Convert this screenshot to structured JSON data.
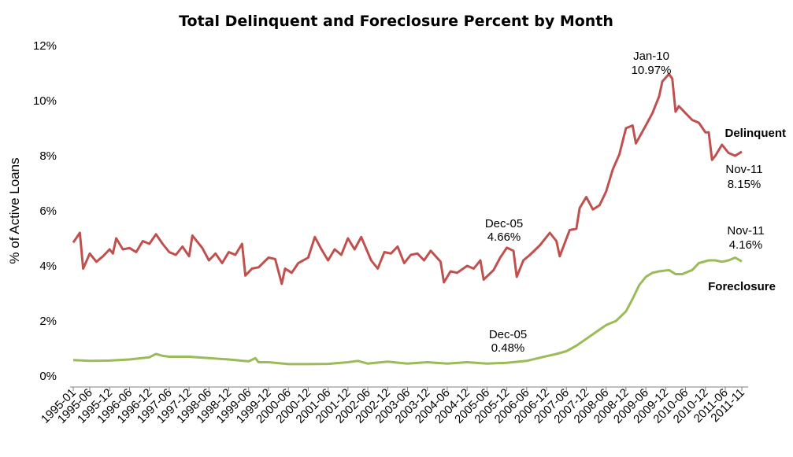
{
  "colors": {
    "delinquent": "#C0504D",
    "foreclosure": "#9BBB59",
    "axis": "#808080"
  },
  "chart_data": {
    "type": "line",
    "title": "Total Delinquent and Foreclosure Percent by Month",
    "ylabel": "% of Active Loans",
    "xlabel": "",
    "ylim": [
      0,
      12
    ],
    "yticks": [
      0,
      2,
      4,
      6,
      8,
      10,
      12
    ],
    "ytick_labels": [
      "0%",
      "2%",
      "4%",
      "6%",
      "8%",
      "10%",
      "12%"
    ],
    "xtick_labels": [
      "1995-01",
      "1995-06",
      "1995-12",
      "1996-06",
      "1996-12",
      "1997-06",
      "1997-12",
      "1998-06",
      "1998-12",
      "1999-06",
      "1999-12",
      "2000-06",
      "2000-12",
      "2001-06",
      "2001-12",
      "2002-06",
      "2002-12",
      "2003-06",
      "2003-12",
      "2004-06",
      "2004-12",
      "2005-06",
      "2005-12",
      "2006-06",
      "2006-12",
      "2007-06",
      "2007-12",
      "2008-06",
      "2008-12",
      "2009-06",
      "2009-12",
      "2010-06",
      "2010-12",
      "2011-06",
      "2011-11"
    ],
    "x_start": "1995-01",
    "x_end": "2011-11",
    "grid": false,
    "series": [
      {
        "name": "Delinquent",
        "color": "#C0504D",
        "points": [
          [
            "1995-01",
            4.85
          ],
          [
            "1995-03",
            5.2
          ],
          [
            "1995-04",
            3.9
          ],
          [
            "1995-06",
            4.45
          ],
          [
            "1995-08",
            4.15
          ],
          [
            "1995-10",
            4.35
          ],
          [
            "1995-12",
            4.6
          ],
          [
            "1996-01",
            4.45
          ],
          [
            "1996-02",
            5.0
          ],
          [
            "1996-04",
            4.6
          ],
          [
            "1996-06",
            4.65
          ],
          [
            "1996-08",
            4.5
          ],
          [
            "1996-10",
            4.9
          ],
          [
            "1996-12",
            4.8
          ],
          [
            "1997-02",
            5.15
          ],
          [
            "1997-04",
            4.8
          ],
          [
            "1997-06",
            4.5
          ],
          [
            "1997-08",
            4.4
          ],
          [
            "1997-10",
            4.7
          ],
          [
            "1997-12",
            4.35
          ],
          [
            "1998-01",
            5.1
          ],
          [
            "1998-04",
            4.65
          ],
          [
            "1998-06",
            4.2
          ],
          [
            "1998-08",
            4.45
          ],
          [
            "1998-10",
            4.1
          ],
          [
            "1998-12",
            4.5
          ],
          [
            "1999-02",
            4.4
          ],
          [
            "1999-04",
            4.8
          ],
          [
            "1999-05",
            3.65
          ],
          [
            "1999-07",
            3.9
          ],
          [
            "1999-09",
            3.95
          ],
          [
            "1999-12",
            4.3
          ],
          [
            "2000-02",
            4.25
          ],
          [
            "2000-04",
            3.35
          ],
          [
            "2000-05",
            3.9
          ],
          [
            "2000-07",
            3.75
          ],
          [
            "2000-09",
            4.1
          ],
          [
            "2000-12",
            4.3
          ],
          [
            "2001-02",
            5.05
          ],
          [
            "2001-04",
            4.6
          ],
          [
            "2001-06",
            4.2
          ],
          [
            "2001-08",
            4.6
          ],
          [
            "2001-10",
            4.4
          ],
          [
            "2001-12",
            5.0
          ],
          [
            "2002-02",
            4.6
          ],
          [
            "2002-04",
            5.05
          ],
          [
            "2002-07",
            4.2
          ],
          [
            "2002-09",
            3.9
          ],
          [
            "2002-11",
            4.5
          ],
          [
            "2003-01",
            4.45
          ],
          [
            "2003-03",
            4.7
          ],
          [
            "2003-05",
            4.1
          ],
          [
            "2003-07",
            4.4
          ],
          [
            "2003-09",
            4.45
          ],
          [
            "2003-11",
            4.2
          ],
          [
            "2004-01",
            4.55
          ],
          [
            "2004-04",
            4.15
          ],
          [
            "2004-05",
            3.4
          ],
          [
            "2004-07",
            3.8
          ],
          [
            "2004-09",
            3.75
          ],
          [
            "2004-12",
            4.0
          ],
          [
            "2005-02",
            3.9
          ],
          [
            "2005-04",
            4.2
          ],
          [
            "2005-05",
            3.5
          ],
          [
            "2005-08",
            3.85
          ],
          [
            "2005-10",
            4.3
          ],
          [
            "2005-12",
            4.66
          ],
          [
            "2006-02",
            4.55
          ],
          [
            "2006-03",
            3.6
          ],
          [
            "2006-05",
            4.2
          ],
          [
            "2006-07",
            4.4
          ],
          [
            "2006-10",
            4.75
          ],
          [
            "2007-01",
            5.2
          ],
          [
            "2007-03",
            4.9
          ],
          [
            "2007-04",
            4.35
          ],
          [
            "2007-07",
            5.3
          ],
          [
            "2007-09",
            5.35
          ],
          [
            "2007-10",
            6.1
          ],
          [
            "2007-12",
            6.5
          ],
          [
            "2008-02",
            6.05
          ],
          [
            "2008-04",
            6.2
          ],
          [
            "2008-06",
            6.7
          ],
          [
            "2008-08",
            7.5
          ],
          [
            "2008-10",
            8.05
          ],
          [
            "2008-12",
            9.0
          ],
          [
            "2009-02",
            9.1
          ],
          [
            "2009-03",
            8.45
          ],
          [
            "2009-06",
            9.1
          ],
          [
            "2009-08",
            9.55
          ],
          [
            "2009-10",
            10.15
          ],
          [
            "2009-11",
            10.7
          ],
          [
            "2010-01",
            10.97
          ],
          [
            "2010-02",
            10.8
          ],
          [
            "2010-03",
            9.6
          ],
          [
            "2010-04",
            9.8
          ],
          [
            "2010-06",
            9.55
          ],
          [
            "2010-08",
            9.3
          ],
          [
            "2010-10",
            9.2
          ],
          [
            "2010-12",
            8.85
          ],
          [
            "2011-01",
            8.85
          ],
          [
            "2011-02",
            7.85
          ],
          [
            "2011-03",
            8.0
          ],
          [
            "2011-05",
            8.4
          ],
          [
            "2011-07",
            8.1
          ],
          [
            "2011-09",
            8.0
          ],
          [
            "2011-11",
            8.15
          ]
        ]
      },
      {
        "name": "Foreclosure",
        "color": "#9BBB59",
        "points": [
          [
            "1995-01",
            0.58
          ],
          [
            "1995-06",
            0.55
          ],
          [
            "1995-12",
            0.56
          ],
          [
            "1996-06",
            0.6
          ],
          [
            "1996-12",
            0.68
          ],
          [
            "1997-02",
            0.8
          ],
          [
            "1997-04",
            0.73
          ],
          [
            "1997-06",
            0.7
          ],
          [
            "1997-12",
            0.7
          ],
          [
            "1998-06",
            0.65
          ],
          [
            "1998-12",
            0.6
          ],
          [
            "1999-06",
            0.53
          ],
          [
            "1999-08",
            0.65
          ],
          [
            "1999-09",
            0.5
          ],
          [
            "1999-12",
            0.5
          ],
          [
            "2000-06",
            0.43
          ],
          [
            "2000-12",
            0.43
          ],
          [
            "2001-06",
            0.44
          ],
          [
            "2001-12",
            0.5
          ],
          [
            "2002-03",
            0.55
          ],
          [
            "2002-06",
            0.45
          ],
          [
            "2002-12",
            0.52
          ],
          [
            "2003-06",
            0.45
          ],
          [
            "2003-12",
            0.5
          ],
          [
            "2004-06",
            0.45
          ],
          [
            "2004-12",
            0.5
          ],
          [
            "2005-06",
            0.45
          ],
          [
            "2005-12",
            0.48
          ],
          [
            "2006-06",
            0.55
          ],
          [
            "2006-12",
            0.72
          ],
          [
            "2007-03",
            0.8
          ],
          [
            "2007-06",
            0.9
          ],
          [
            "2007-09",
            1.1
          ],
          [
            "2007-12",
            1.35
          ],
          [
            "2008-03",
            1.6
          ],
          [
            "2008-06",
            1.85
          ],
          [
            "2008-09",
            2.0
          ],
          [
            "2008-12",
            2.35
          ],
          [
            "2009-02",
            2.8
          ],
          [
            "2009-04",
            3.3
          ],
          [
            "2009-06",
            3.6
          ],
          [
            "2009-08",
            3.75
          ],
          [
            "2009-10",
            3.8
          ],
          [
            "2010-01",
            3.85
          ],
          [
            "2010-03",
            3.7
          ],
          [
            "2010-05",
            3.7
          ],
          [
            "2010-08",
            3.85
          ],
          [
            "2010-10",
            4.1
          ],
          [
            "2011-01",
            4.2
          ],
          [
            "2011-03",
            4.2
          ],
          [
            "2011-05",
            4.15
          ],
          [
            "2011-07",
            4.2
          ],
          [
            "2011-09",
            4.3
          ],
          [
            "2011-11",
            4.16
          ]
        ]
      }
    ],
    "series_labels": {
      "delinquent": "Delinquent",
      "foreclosure": "Foreclosure"
    },
    "annotations": [
      {
        "id": "delq-peak",
        "label": "Jan-10",
        "value_label": "10.97%",
        "x": "2010-01",
        "y": 10.97
      },
      {
        "id": "delq-last",
        "label": "Nov-11",
        "value_label": "8.15%",
        "x": "2011-11",
        "y": 8.15
      },
      {
        "id": "delq-dec05",
        "label": "Dec-05",
        "value_label": "4.66%",
        "x": "2005-12",
        "y": 4.66
      },
      {
        "id": "fc-last",
        "label": "Nov-11",
        "value_label": "4.16%",
        "x": "2011-11",
        "y": 4.16
      },
      {
        "id": "fc-dec05",
        "label": "Dec-05",
        "value_label": "0.48%",
        "x": "2005-12",
        "y": 0.48
      }
    ]
  }
}
